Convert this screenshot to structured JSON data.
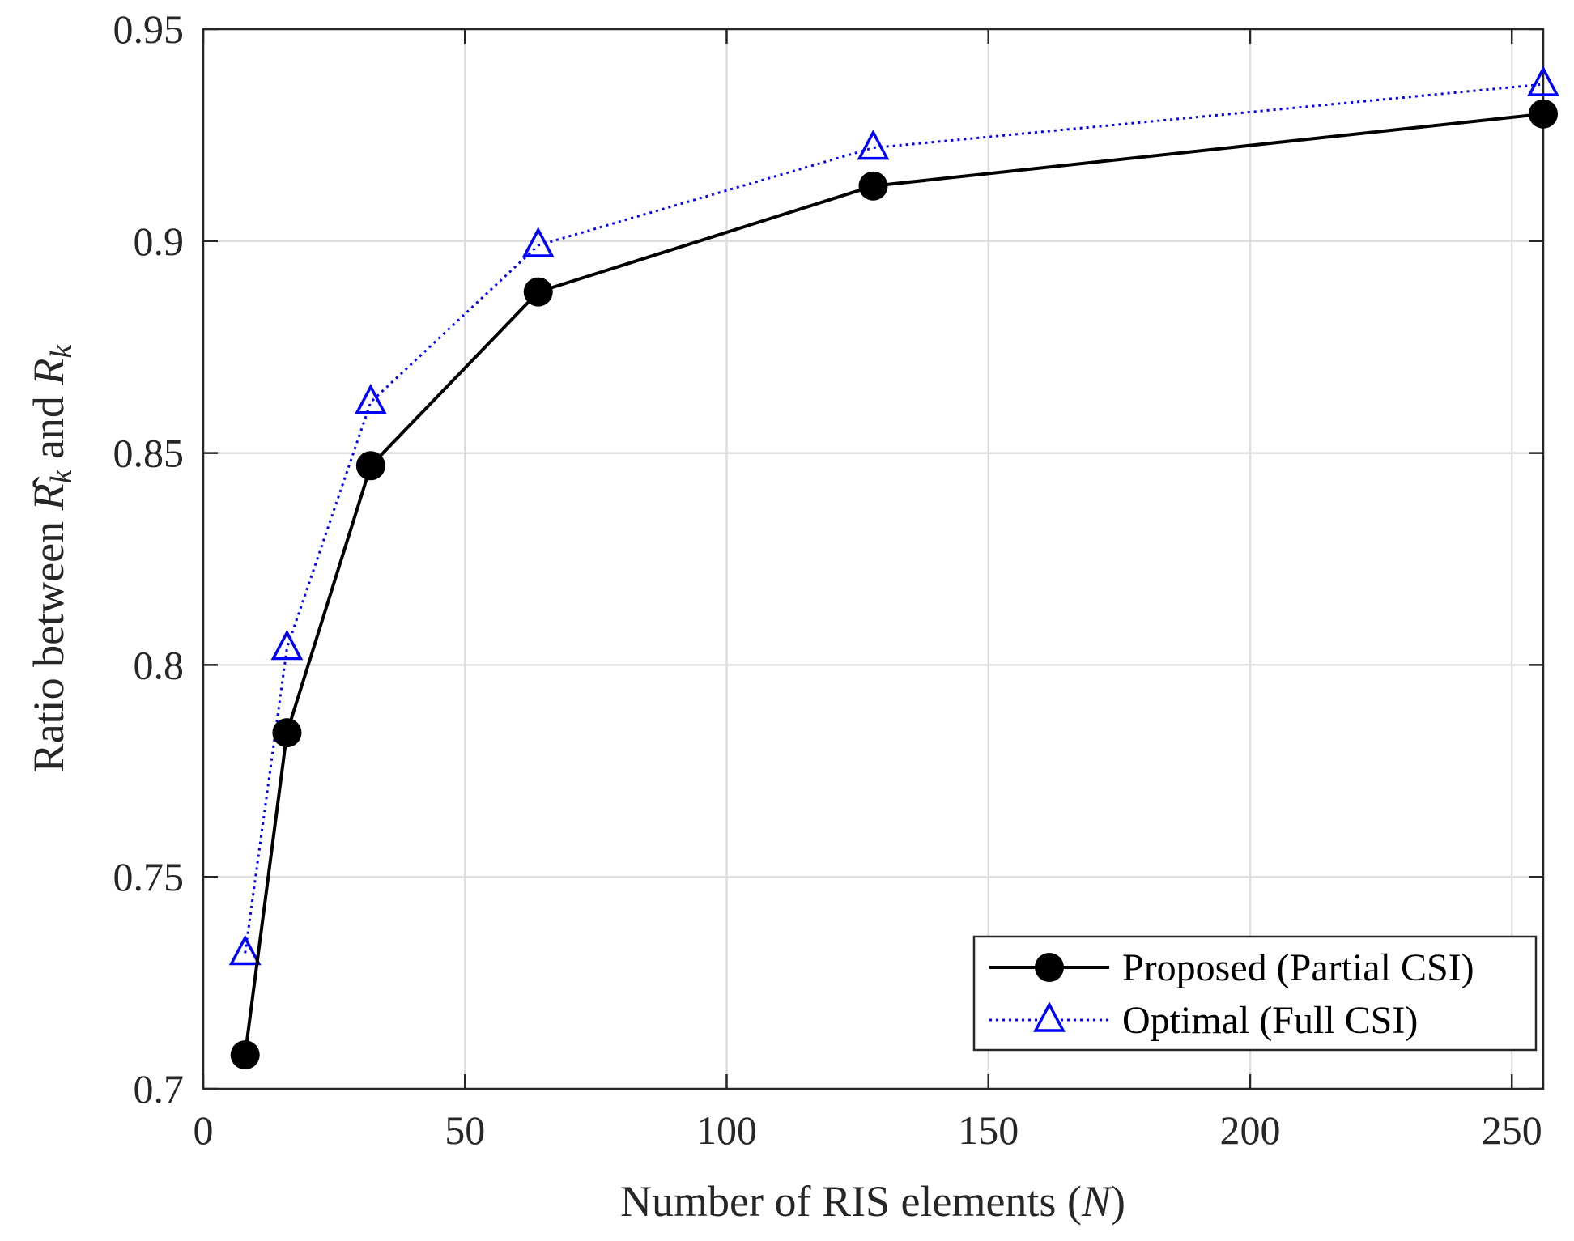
{
  "chart_data": {
    "type": "line",
    "title": "",
    "xlabel": "Number of RIS elements (N)",
    "xlabel_parts": {
      "prefix": "Number of RIS elements (",
      "var": "N",
      "suffix": ")"
    },
    "ylabel": "Ratio between R̂k and Rk",
    "ylabel_parts": {
      "prefix": "Ratio between ",
      "hat": "̂",
      "var1": "R",
      "sub1": "k",
      "mid": " and ",
      "var2": "R",
      "sub2": "k"
    },
    "xlim": [
      0,
      256
    ],
    "ylim": [
      0.7,
      0.95
    ],
    "xticks": [
      0,
      50,
      100,
      150,
      200,
      250
    ],
    "xtick_labels": [
      "0",
      "50",
      "100",
      "150",
      "200",
      "250"
    ],
    "yticks": [
      0.7,
      0.75,
      0.8,
      0.85,
      0.9,
      0.95
    ],
    "ytick_labels": [
      "0.7",
      "0.75",
      "0.8",
      "0.85",
      "0.9",
      "0.95"
    ],
    "grid": true,
    "legend_position": "bottom-right",
    "x": [
      8,
      16,
      32,
      64,
      128,
      256
    ],
    "series": [
      {
        "name": "Proposed (Partial CSI)",
        "values": [
          0.708,
          0.784,
          0.847,
          0.888,
          0.913,
          0.93
        ],
        "color": "#000000",
        "marker": "circle",
        "line": "solid"
      },
      {
        "name": "Optimal (Full CSI)",
        "values": [
          0.732,
          0.804,
          0.862,
          0.899,
          0.922,
          0.937
        ],
        "color": "#0000ff",
        "marker": "triangle",
        "line": "dotted"
      }
    ]
  }
}
